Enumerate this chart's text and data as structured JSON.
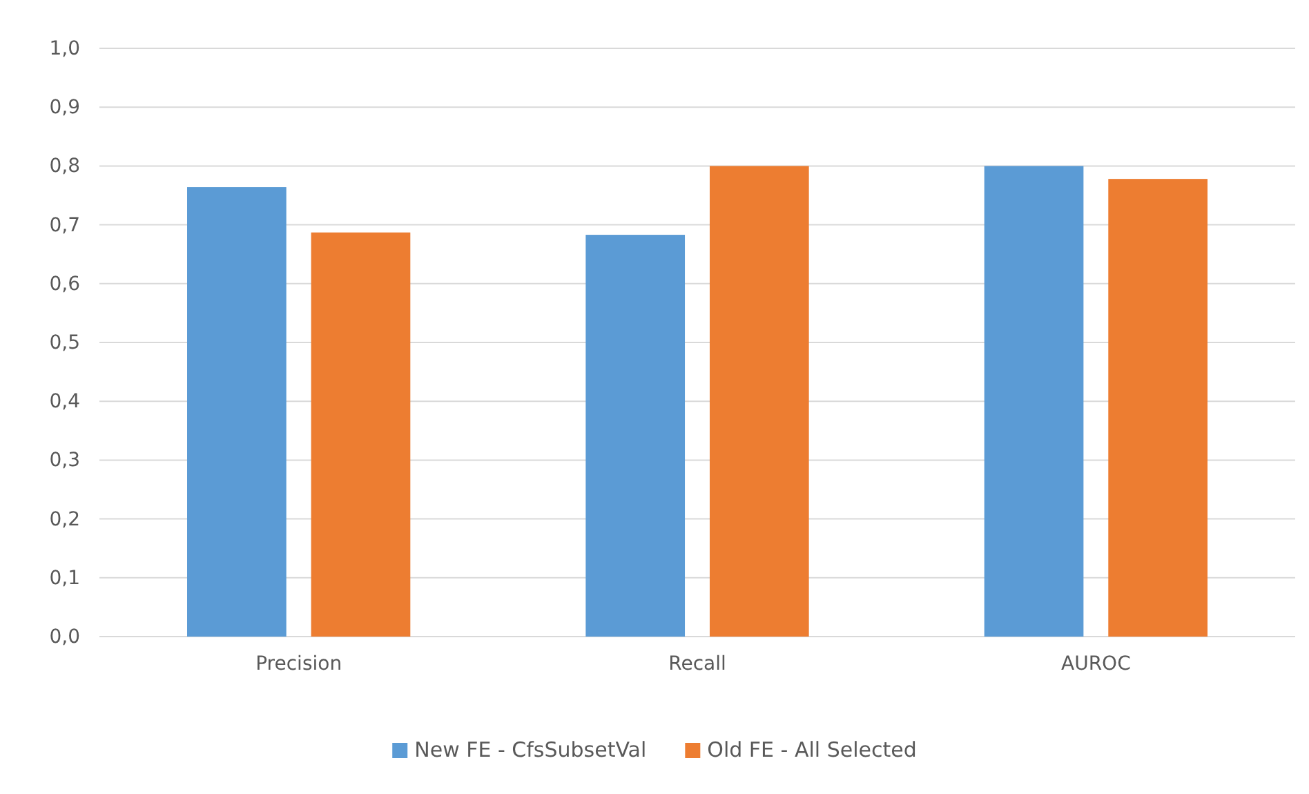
{
  "chart_data": {
    "type": "bar",
    "categories": [
      "Precision",
      "Recall",
      "AUROC"
    ],
    "series": [
      {
        "name": "New FE - CfsSubsetVal",
        "color": "#5b9bd5",
        "values": [
          0.764,
          0.683,
          0.8
        ]
      },
      {
        "name": "Old FE - All Selected",
        "color": "#ed7d31",
        "values": [
          0.687,
          0.8,
          0.778
        ]
      }
    ],
    "ylim": [
      0,
      1
    ],
    "yticks": [
      {
        "value": 0,
        "label": "0,0"
      },
      {
        "value": 0.1,
        "label": "0,1"
      },
      {
        "value": 0.2,
        "label": "0,2"
      },
      {
        "value": 0.3,
        "label": "0,3"
      },
      {
        "value": 0.4,
        "label": "0,4"
      },
      {
        "value": 0.5,
        "label": "0,5"
      },
      {
        "value": 0.6,
        "label": "0,6"
      },
      {
        "value": 0.7,
        "label": "0,7"
      },
      {
        "value": 0.8,
        "label": "0,8"
      },
      {
        "value": 0.9,
        "label": "0,9"
      },
      {
        "value": 1,
        "label": "1,0"
      }
    ],
    "grid": "y",
    "legend": "bottom"
  }
}
